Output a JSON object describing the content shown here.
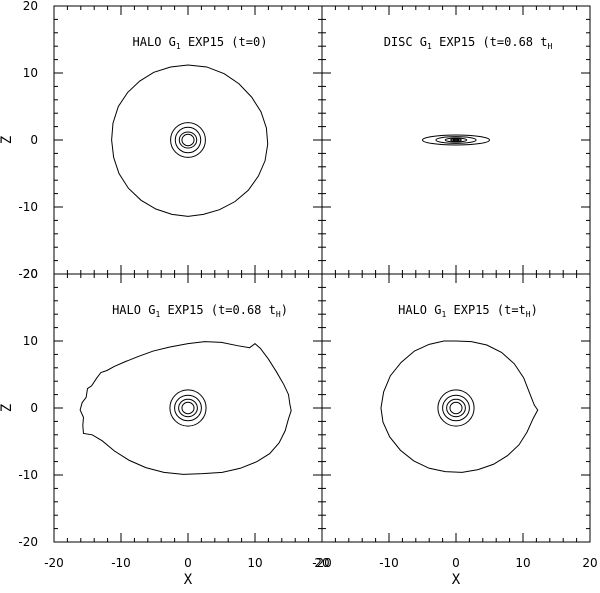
{
  "chart_data": {
    "type": "contour",
    "layout": "2x2",
    "xlabel": "X",
    "ylabel": "Z",
    "xlim": [
      -20,
      20
    ],
    "ylim": [
      -20,
      20
    ],
    "x_ticks": [
      "-20",
      "-10",
      "0",
      "10",
      "20"
    ],
    "y_ticks": [
      "-20",
      "-10",
      "0",
      "10",
      "20"
    ],
    "panels": [
      {
        "title": {
          "label": "HALO G",
          "sub": "1",
          "rest": " EXP15 (t=0)"
        },
        "contours": [
          {
            "level": "outer",
            "points": [
              [
                0,
                11.2
              ],
              [
                2.8,
                10.9
              ],
              [
                5.4,
                9.9
              ],
              [
                7.6,
                8.4
              ],
              [
                9.5,
                6.4
              ],
              [
                10.9,
                4.2
              ],
              [
                11.7,
                1.8
              ],
              [
                11.9,
                -0.6
              ],
              [
                11.5,
                -3.1
              ],
              [
                10.5,
                -5.4
              ],
              [
                9.0,
                -7.5
              ],
              [
                7.0,
                -9.2
              ],
              [
                4.7,
                -10.4
              ],
              [
                2.3,
                -11.1
              ],
              [
                0,
                -11.4
              ],
              [
                -2.4,
                -11.1
              ],
              [
                -4.8,
                -10.3
              ],
              [
                -7.0,
                -9.0
              ],
              [
                -8.9,
                -7.2
              ],
              [
                -10.3,
                -5.0
              ],
              [
                -11.1,
                -2.6
              ],
              [
                -11.4,
                0
              ],
              [
                -11.2,
                2.5
              ],
              [
                -10.4,
                5.0
              ],
              [
                -9.0,
                7.1
              ],
              [
                -7.2,
                8.8
              ],
              [
                -5.1,
                10.1
              ],
              [
                -2.6,
                10.9
              ]
            ]
          },
          {
            "level": "r2.6",
            "ellipse": [
              0,
              0,
              2.6,
              2.6
            ]
          },
          {
            "level": "r1.9",
            "ellipse": [
              0,
              0,
              1.9,
              1.9
            ]
          },
          {
            "level": "r1.3",
            "ellipse": [
              0,
              0,
              1.3,
              1.2
            ]
          },
          {
            "level": "r0.9",
            "ellipse": [
              0,
              0,
              0.9,
              0.85
            ]
          }
        ]
      },
      {
        "title": {
          "label": "DISC G",
          "sub": "1",
          "rest": " EXP15 (t=0.68 t",
          "sub2": "H",
          "close": ""
        },
        "contours": [
          {
            "level": "outer",
            "ellipse": [
              0,
              0,
              5.0,
              0.75
            ]
          },
          {
            "level": "mid",
            "ellipse": [
              0,
              0,
              3.0,
              0.5
            ]
          },
          {
            "level": "inner",
            "ellipse": [
              0,
              0,
              1.6,
              0.3
            ]
          },
          {
            "level": "core",
            "ellipse": [
              0,
              0,
              0.8,
              0.18
            ]
          },
          {
            "level": "core2",
            "ellipse": [
              0,
              0,
              0.4,
              0.1
            ]
          }
        ]
      },
      {
        "title": {
          "label": "HALO G",
          "sub": "1",
          "rest": " EXP15 (t=0.68 t",
          "sub2": "H",
          "close": ")"
        },
        "contours": [
          {
            "level": "outer",
            "points": [
              [
                0,
                9.6
              ],
              [
                2.5,
                9.9
              ],
              [
                5.0,
                9.8
              ],
              [
                7.4,
                9.3
              ],
              [
                9.2,
                9.0
              ],
              [
                10.0,
                9.6
              ],
              [
                10.8,
                8.9
              ],
              [
                12.0,
                7.3
              ],
              [
                13.2,
                5.4
              ],
              [
                14.3,
                3.5
              ],
              [
                15.0,
                2.0
              ],
              [
                15.2,
                0.6
              ],
              [
                15.4,
                -0.4
              ],
              [
                15.0,
                -1.6
              ],
              [
                14.5,
                -3.4
              ],
              [
                13.6,
                -5.2
              ],
              [
                12.2,
                -6.8
              ],
              [
                10.3,
                -8.0
              ],
              [
                7.8,
                -9.0
              ],
              [
                5.1,
                -9.6
              ],
              [
                2.2,
                -9.8
              ],
              [
                -0.7,
                -9.9
              ],
              [
                -3.6,
                -9.6
              ],
              [
                -6.3,
                -8.9
              ],
              [
                -8.8,
                -7.8
              ],
              [
                -11.0,
                -6.4
              ],
              [
                -12.8,
                -4.9
              ],
              [
                -14.3,
                -4.0
              ],
              [
                -15.6,
                -3.8
              ],
              [
                -15.7,
                -2.6
              ],
              [
                -15.6,
                -1.4
              ],
              [
                -16.1,
                -0.3
              ],
              [
                -15.8,
                0.8
              ],
              [
                -15.2,
                1.6
              ],
              [
                -15.0,
                2.9
              ],
              [
                -14.4,
                3.3
              ],
              [
                -13.6,
                4.5
              ],
              [
                -13.0,
                5.3
              ],
              [
                -12.1,
                5.6
              ],
              [
                -11.0,
                6.2
              ],
              [
                -9.4,
                6.9
              ],
              [
                -7.4,
                7.7
              ],
              [
                -5.2,
                8.5
              ],
              [
                -2.7,
                9.1
              ]
            ]
          },
          {
            "level": "r2.7",
            "ellipse": [
              0,
              0,
              2.7,
              2.7
            ]
          },
          {
            "level": "r2.0",
            "ellipse": [
              0,
              0,
              2.0,
              1.9
            ]
          },
          {
            "level": "r1.4",
            "ellipse": [
              0,
              0,
              1.4,
              1.3
            ]
          },
          {
            "level": "r0.9",
            "ellipse": [
              0,
              0,
              0.9,
              0.85
            ]
          }
        ]
      },
      {
        "title": {
          "label": "HALO G",
          "sub": "1",
          "rest": " EXP15 (t=t",
          "sub2": "H",
          "close": ")"
        },
        "contours": [
          {
            "level": "outer",
            "points": [
              [
                0,
                10.0
              ],
              [
                2.3,
                9.9
              ],
              [
                4.6,
                9.4
              ],
              [
                6.8,
                8.3
              ],
              [
                8.7,
                6.6
              ],
              [
                10.1,
                4.5
              ],
              [
                11.0,
                2.2
              ],
              [
                11.7,
                0.4
              ],
              [
                12.2,
                -0.3
              ],
              [
                11.5,
                -1.6
              ],
              [
                10.6,
                -3.6
              ],
              [
                9.4,
                -5.5
              ],
              [
                7.7,
                -7.1
              ],
              [
                5.6,
                -8.4
              ],
              [
                3.3,
                -9.2
              ],
              [
                0.9,
                -9.6
              ],
              [
                -1.6,
                -9.5
              ],
              [
                -4.0,
                -9.0
              ],
              [
                -6.3,
                -7.9
              ],
              [
                -8.3,
                -6.3
              ],
              [
                -9.9,
                -4.3
              ],
              [
                -10.9,
                -2.1
              ],
              [
                -11.2,
                0
              ],
              [
                -10.8,
                2.4
              ],
              [
                -9.8,
                4.8
              ],
              [
                -8.2,
                6.8
              ],
              [
                -6.2,
                8.5
              ],
              [
                -4.0,
                9.5
              ],
              [
                -1.8,
                10.0
              ]
            ]
          },
          {
            "level": "r2.7",
            "ellipse": [
              0,
              0,
              2.7,
              2.7
            ]
          },
          {
            "level": "r2.0",
            "ellipse": [
              0,
              0,
              2.0,
              1.9
            ]
          },
          {
            "level": "r1.4",
            "ellipse": [
              0,
              0,
              1.4,
              1.3
            ]
          },
          {
            "level": "r0.9",
            "ellipse": [
              0,
              0,
              0.9,
              0.85
            ]
          }
        ]
      }
    ]
  }
}
